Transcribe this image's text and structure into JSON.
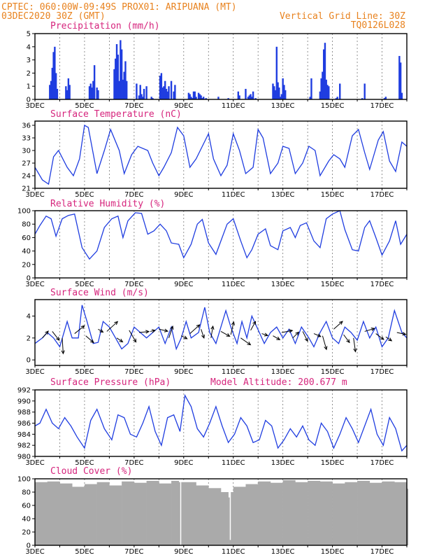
{
  "header": {
    "line1_left": "CPTEC:  060:00W-09:49S  PROX01: ARIPUANA (MT)",
    "line2_left": "03DEC2020 30Z (GMT)",
    "line2_right": "Vertical Grid Line: 30Z",
    "line3_right": "TQ0126L028"
  },
  "colors": {
    "header": "#e8821e",
    "title": "#d6257d",
    "series": "#1f3de0",
    "wind_arrow": "#000000",
    "cloud": "#aaaaaa"
  },
  "x_axis": {
    "tick_labels": [
      "3DEC",
      "5DEC",
      "7DEC",
      "9DEC",
      "11DEC",
      "13DEC",
      "15DEC",
      "17DEC"
    ],
    "range_days": [
      3,
      18
    ]
  },
  "chart_data": [
    {
      "id": "precip",
      "type": "bar",
      "title": "Precipitation (mm/h)",
      "ylim": [
        0,
        5
      ],
      "yticks": [
        0,
        1,
        2,
        3,
        4,
        5
      ],
      "color": "#1f3de0",
      "x": [
        3.6,
        3.65,
        3.7,
        3.75,
        3.8,
        3.85,
        3.9,
        4.25,
        4.3,
        4.35,
        4.4,
        5.2,
        5.25,
        5.3,
        5.35,
        5.4,
        5.5,
        5.55,
        6.2,
        6.25,
        6.3,
        6.35,
        6.4,
        6.45,
        6.5,
        6.55,
        6.6,
        6.65,
        6.7,
        7.1,
        7.2,
        7.25,
        7.3,
        7.35,
        7.4,
        7.5,
        7.7,
        7.75,
        8.05,
        8.1,
        8.15,
        8.2,
        8.25,
        8.3,
        8.35,
        8.4,
        8.5,
        8.6,
        8.65,
        9.2,
        9.25,
        9.3,
        9.35,
        9.4,
        9.45,
        9.5,
        9.6,
        9.65,
        9.7,
        9.75,
        9.8,
        9.9,
        10.4,
        10.8,
        11.2,
        11.25,
        11.5,
        11.6,
        11.65,
        11.7,
        11.75,
        11.8,
        11.9,
        12.6,
        12.65,
        12.7,
        12.75,
        12.8,
        12.85,
        12.9,
        12.95,
        13.0,
        13.05,
        13.1,
        14.1,
        14.15,
        14.5,
        14.55,
        14.6,
        14.65,
        14.7,
        14.75,
        14.8,
        14.85,
        15.15,
        15.2,
        15.3,
        16.2,
        16.3,
        17.1,
        17.15,
        17.7,
        17.75,
        17.8
      ],
      "values": [
        1.1,
        1.4,
        2.4,
        3.6,
        4.0,
        2.0,
        0.8,
        1.0,
        0.7,
        1.6,
        1.1,
        1.0,
        1.2,
        0.9,
        1.4,
        2.6,
        0.9,
        0.7,
        2.3,
        3.1,
        4.2,
        3.4,
        1.4,
        4.5,
        3.8,
        1.5,
        2.1,
        2.9,
        1.4,
        1.2,
        0.3,
        1.1,
        0.4,
        0.2,
        0.8,
        1.0,
        0.2,
        0.1,
        1.8,
        2.0,
        0.9,
        1.0,
        1.4,
        0.8,
        0.6,
        1.0,
        1.4,
        0.6,
        1.1,
        0.5,
        0.4,
        0.2,
        0.1,
        0.6,
        0.6,
        0.2,
        0.5,
        0.4,
        0.3,
        0.1,
        0.2,
        0.1,
        0.2,
        0.1,
        0.6,
        0.3,
        0.8,
        0.2,
        0.3,
        0.4,
        0.2,
        0.6,
        0.1,
        1.2,
        1.0,
        0.7,
        4.0,
        1.3,
        0.9,
        0.2,
        0.4,
        1.6,
        1.1,
        0.7,
        0.2,
        1.6,
        0.6,
        1.6,
        2.1,
        3.8,
        4.3,
        1.5,
        1.1,
        1.0,
        0.1,
        0.2,
        1.2,
        0.1,
        1.2,
        0.1,
        0.2,
        3.3,
        2.8,
        0.5
      ]
    },
    {
      "id": "temp",
      "type": "line",
      "title": "Surface Temperature (nC)",
      "ylim": [
        21,
        37
      ],
      "yticks": [
        21,
        24,
        27,
        30,
        33,
        36
      ],
      "color": "#1f3de0",
      "x": [
        3.0,
        3.3,
        3.55,
        3.75,
        3.95,
        4.3,
        4.55,
        4.8,
        5.0,
        5.15,
        5.5,
        5.8,
        6.05,
        6.4,
        6.6,
        6.9,
        7.15,
        7.55,
        7.75,
        8.0,
        8.2,
        8.5,
        8.75,
        9.0,
        9.25,
        9.5,
        9.75,
        10.0,
        10.2,
        10.5,
        10.75,
        11.0,
        11.25,
        11.5,
        11.8,
        12.0,
        12.2,
        12.5,
        12.8,
        13.0,
        13.25,
        13.5,
        13.8,
        14.05,
        14.3,
        14.5,
        14.85,
        15.05,
        15.3,
        15.5,
        15.8,
        16.05,
        16.3,
        16.5,
        16.85,
        17.05,
        17.3,
        17.55,
        17.8,
        18.0
      ],
      "values": [
        26.0,
        23.0,
        22.0,
        28.5,
        30.0,
        26.0,
        24.0,
        28.0,
        36.0,
        35.5,
        24.5,
        30.0,
        35.0,
        30.0,
        24.5,
        29.0,
        31.0,
        30.0,
        27.0,
        24.0,
        26.0,
        29.5,
        35.5,
        33.5,
        26.0,
        28.0,
        31.0,
        34.0,
        28.0,
        24.0,
        26.5,
        34.0,
        30.0,
        24.5,
        26.0,
        35.0,
        33.0,
        24.5,
        27.0,
        31.0,
        30.5,
        24.5,
        27.0,
        31.0,
        30.0,
        24.0,
        27.5,
        29.0,
        28.0,
        26.0,
        33.5,
        35.0,
        29.5,
        25.5,
        32.5,
        34.5,
        27.5,
        25.0,
        32.0,
        31.0
      ]
    },
    {
      "id": "rh",
      "type": "line",
      "title": "Relative Humidity (%)",
      "ylim": [
        0,
        100
      ],
      "yticks": [
        0,
        20,
        40,
        60,
        80,
        100
      ],
      "color": "#1f3de0",
      "x": [
        3.0,
        3.2,
        3.45,
        3.65,
        3.85,
        4.1,
        4.35,
        4.6,
        4.9,
        5.2,
        5.5,
        5.8,
        6.1,
        6.35,
        6.55,
        6.75,
        7.05,
        7.3,
        7.55,
        7.8,
        8.05,
        8.3,
        8.5,
        8.8,
        9.0,
        9.3,
        9.55,
        9.75,
        10.0,
        10.3,
        10.55,
        10.75,
        11.0,
        11.3,
        11.55,
        11.75,
        12.0,
        12.3,
        12.5,
        12.8,
        13.0,
        13.3,
        13.5,
        13.7,
        13.95,
        14.25,
        14.5,
        14.75,
        15.0,
        15.3,
        15.5,
        15.8,
        16.05,
        16.3,
        16.5,
        16.75,
        17.0,
        17.3,
        17.55,
        17.75,
        18.0
      ],
      "values": [
        65.0,
        78.0,
        92.0,
        88.0,
        62.0,
        88.0,
        93.0,
        95.0,
        45.0,
        28.0,
        40.0,
        75.0,
        88.0,
        92.0,
        60.0,
        85.0,
        97.0,
        96.0,
        65.0,
        70.0,
        80.0,
        70.0,
        52.0,
        50.0,
        30.0,
        50.0,
        80.0,
        87.0,
        52.0,
        35.0,
        60.0,
        80.0,
        88.0,
        55.0,
        30.0,
        42.0,
        65.0,
        73.0,
        48.0,
        42.0,
        70.0,
        75.0,
        60.0,
        78.0,
        82.0,
        55.0,
        45.0,
        88.0,
        95.0,
        100.0,
        72.0,
        42.0,
        40.0,
        75.0,
        85.0,
        60.0,
        34.0,
        55.0,
        85.0,
        50.0,
        65.0
      ]
    },
    {
      "id": "wind",
      "type": "line",
      "title": "Surface Wind (m/s)",
      "ylim": [
        -0.5,
        5.5
      ],
      "yticks": [
        0,
        2,
        4
      ],
      "color": "#1f3de0",
      "x": [
        3.0,
        3.3,
        3.5,
        3.75,
        4.0,
        4.3,
        4.5,
        4.75,
        4.9,
        5.1,
        5.35,
        5.55,
        5.75,
        6.0,
        6.25,
        6.5,
        6.75,
        7.0,
        7.25,
        7.5,
        7.75,
        8.0,
        8.25,
        8.5,
        8.7,
        8.9,
        9.1,
        9.3,
        9.6,
        9.85,
        10.05,
        10.3,
        10.5,
        10.7,
        10.9,
        11.15,
        11.35,
        11.55,
        11.75,
        12.05,
        12.25,
        12.5,
        12.75,
        13.0,
        13.25,
        13.5,
        13.75,
        14.05,
        14.25,
        14.5,
        14.75,
        15.0,
        15.25,
        15.5,
        15.75,
        16.0,
        16.25,
        16.5,
        16.75,
        17.0,
        17.25,
        17.5,
        17.8,
        18.0
      ],
      "values": [
        1.5,
        2.0,
        2.5,
        2.0,
        1.2,
        3.5,
        2.0,
        2.0,
        5.0,
        3.5,
        1.5,
        1.6,
        3.5,
        3.0,
        2.0,
        1.0,
        1.5,
        3.0,
        2.5,
        2.0,
        2.5,
        3.0,
        1.5,
        3.0,
        1.0,
        2.0,
        3.5,
        2.0,
        2.5,
        4.8,
        2.5,
        1.5,
        3.0,
        4.5,
        3.0,
        1.5,
        3.5,
        2.0,
        4.0,
        2.5,
        1.5,
        2.5,
        3.0,
        2.0,
        2.8,
        1.5,
        3.0,
        2.0,
        1.2,
        2.5,
        3.5,
        2.0,
        1.5,
        3.0,
        2.5,
        1.8,
        3.5,
        2.0,
        3.0,
        1.2,
        2.0,
        4.5,
        2.5,
        2.0
      ]
    },
    {
      "id": "pressure",
      "type": "line",
      "title": "Surface Pressure (hPa)",
      "annotation": "Model Altitude: 200.677 m",
      "ylim": [
        980,
        992
      ],
      "yticks": [
        980,
        982,
        984,
        986,
        988,
        990,
        992
      ],
      "color": "#1f3de0",
      "x": [
        3.0,
        3.2,
        3.45,
        3.7,
        3.95,
        4.2,
        4.45,
        4.7,
        5.0,
        5.25,
        5.5,
        5.8,
        6.1,
        6.35,
        6.6,
        6.85,
        7.1,
        7.35,
        7.6,
        7.85,
        8.1,
        8.35,
        8.6,
        8.85,
        9.05,
        9.3,
        9.55,
        9.8,
        10.05,
        10.3,
        10.55,
        10.8,
        11.05,
        11.3,
        11.55,
        11.8,
        12.05,
        12.3,
        12.55,
        12.8,
        13.05,
        13.3,
        13.55,
        13.8,
        14.05,
        14.3,
        14.55,
        14.8,
        15.05,
        15.3,
        15.55,
        15.8,
        16.05,
        16.3,
        16.55,
        16.8,
        17.05,
        17.3,
        17.55,
        17.8,
        18.0
      ],
      "values": [
        985.5,
        986.0,
        988.5,
        986.0,
        985.0,
        987.0,
        985.5,
        983.5,
        981.5,
        986.5,
        988.5,
        985.0,
        983.0,
        987.5,
        987.0,
        984.0,
        983.5,
        986.0,
        989.0,
        984.5,
        982.0,
        987.0,
        987.5,
        984.5,
        991.0,
        989.0,
        985.0,
        983.5,
        986.0,
        989.0,
        985.5,
        982.5,
        984.0,
        987.0,
        985.5,
        982.5,
        983.0,
        986.5,
        985.5,
        981.5,
        983.0,
        985.0,
        983.5,
        985.5,
        983.0,
        982.0,
        986.0,
        984.5,
        981.5,
        984.0,
        987.0,
        985.0,
        982.5,
        985.5,
        988.5,
        984.0,
        982.0,
        987.0,
        985.0,
        981.0,
        982.0
      ]
    },
    {
      "id": "cloud",
      "type": "area",
      "title": "Cloud Cover (%)",
      "ylim": [
        0,
        100
      ],
      "yticks": [
        0,
        20,
        40,
        60,
        80,
        100
      ],
      "color": "#aaaaaa",
      "x": [
        3.0,
        3.5,
        4.0,
        4.5,
        5.0,
        5.5,
        6.0,
        6.5,
        7.0,
        7.5,
        8.0,
        8.5,
        8.8,
        8.85,
        8.9,
        9.5,
        10.0,
        10.5,
        10.8,
        10.85,
        10.9,
        11.0,
        11.5,
        12.0,
        12.5,
        13.0,
        13.5,
        14.0,
        14.5,
        15.0,
        15.5,
        16.0,
        16.5,
        17.0,
        17.5,
        18.0
      ],
      "values": [
        95.0,
        96.0,
        93.0,
        88.0,
        92.0,
        95.0,
        90.0,
        96.0,
        94.0,
        97.0,
        93.0,
        97.0,
        95.0,
        0.0,
        95.0,
        90.0,
        86.0,
        80.0,
        72.0,
        8.0,
        80.0,
        88.0,
        92.0,
        96.0,
        94.0,
        98.0,
        95.0,
        97.0,
        96.0,
        93.0,
        95.0,
        97.0,
        94.0,
        96.0,
        95.0,
        85.0
      ]
    },
    {
      "id": "wind_vectors",
      "type": "scatter",
      "x": [
        3.3,
        3.7,
        4.1,
        4.6,
        5.05,
        5.55,
        5.9,
        6.3,
        6.8,
        7.2,
        7.65,
        8.0,
        8.4,
        8.9,
        9.25,
        9.7,
        10.1,
        10.5,
        10.9,
        11.3,
        11.7,
        12.15,
        12.6,
        12.95,
        13.4,
        13.8,
        14.25,
        14.6,
        15.05,
        15.45,
        15.85,
        16.3,
        16.75,
        17.15,
        17.6
      ],
      "values": [
        2.0,
        2.6,
        2.0,
        2.4,
        2.2,
        2.8,
        2.6,
        2.0,
        2.7,
        2.5,
        2.6,
        2.8,
        2.0,
        2.2,
        2.4,
        2.8,
        2.0,
        2.6,
        2.3,
        2.0,
        2.7,
        2.4,
        2.2,
        2.5,
        2.0,
        2.6,
        2.4,
        2.2,
        2.8,
        2.3,
        2.0,
        2.6,
        2.4,
        2.1,
        2.5
      ],
      "u": [
        0.6,
        0.7,
        0.1,
        1.0,
        0.8,
        0.5,
        1.1,
        0.6,
        0.7,
        1.0,
        0.5,
        0.9,
        0.4,
        0.6,
        1.0,
        0.3,
        0.2,
        0.9,
        0.3,
        1.0,
        0.5,
        0.6,
        0.7,
        1.1,
        0.6,
        0.5,
        0.7,
        0.4,
        0.9,
        0.6,
        0.2,
        1.0,
        0.8,
        0.6,
        0.9
      ],
      "v": [
        0.7,
        -0.9,
        -1.6,
        0.8,
        -0.7,
        -0.3,
        1.0,
        -0.4,
        -1.2,
        0.1,
        0.1,
        -0.2,
        1.2,
        -0.3,
        0.9,
        -0.9,
        1.2,
        -0.5,
        1.3,
        -0.7,
        0.9,
        -0.2,
        -0.4,
        0.2,
        0.6,
        -1.0,
        -0.3,
        -1.4,
        0.8,
        -0.8,
        -1.4,
        0.3,
        -0.6,
        -0.4,
        -0.2
      ]
    }
  ]
}
